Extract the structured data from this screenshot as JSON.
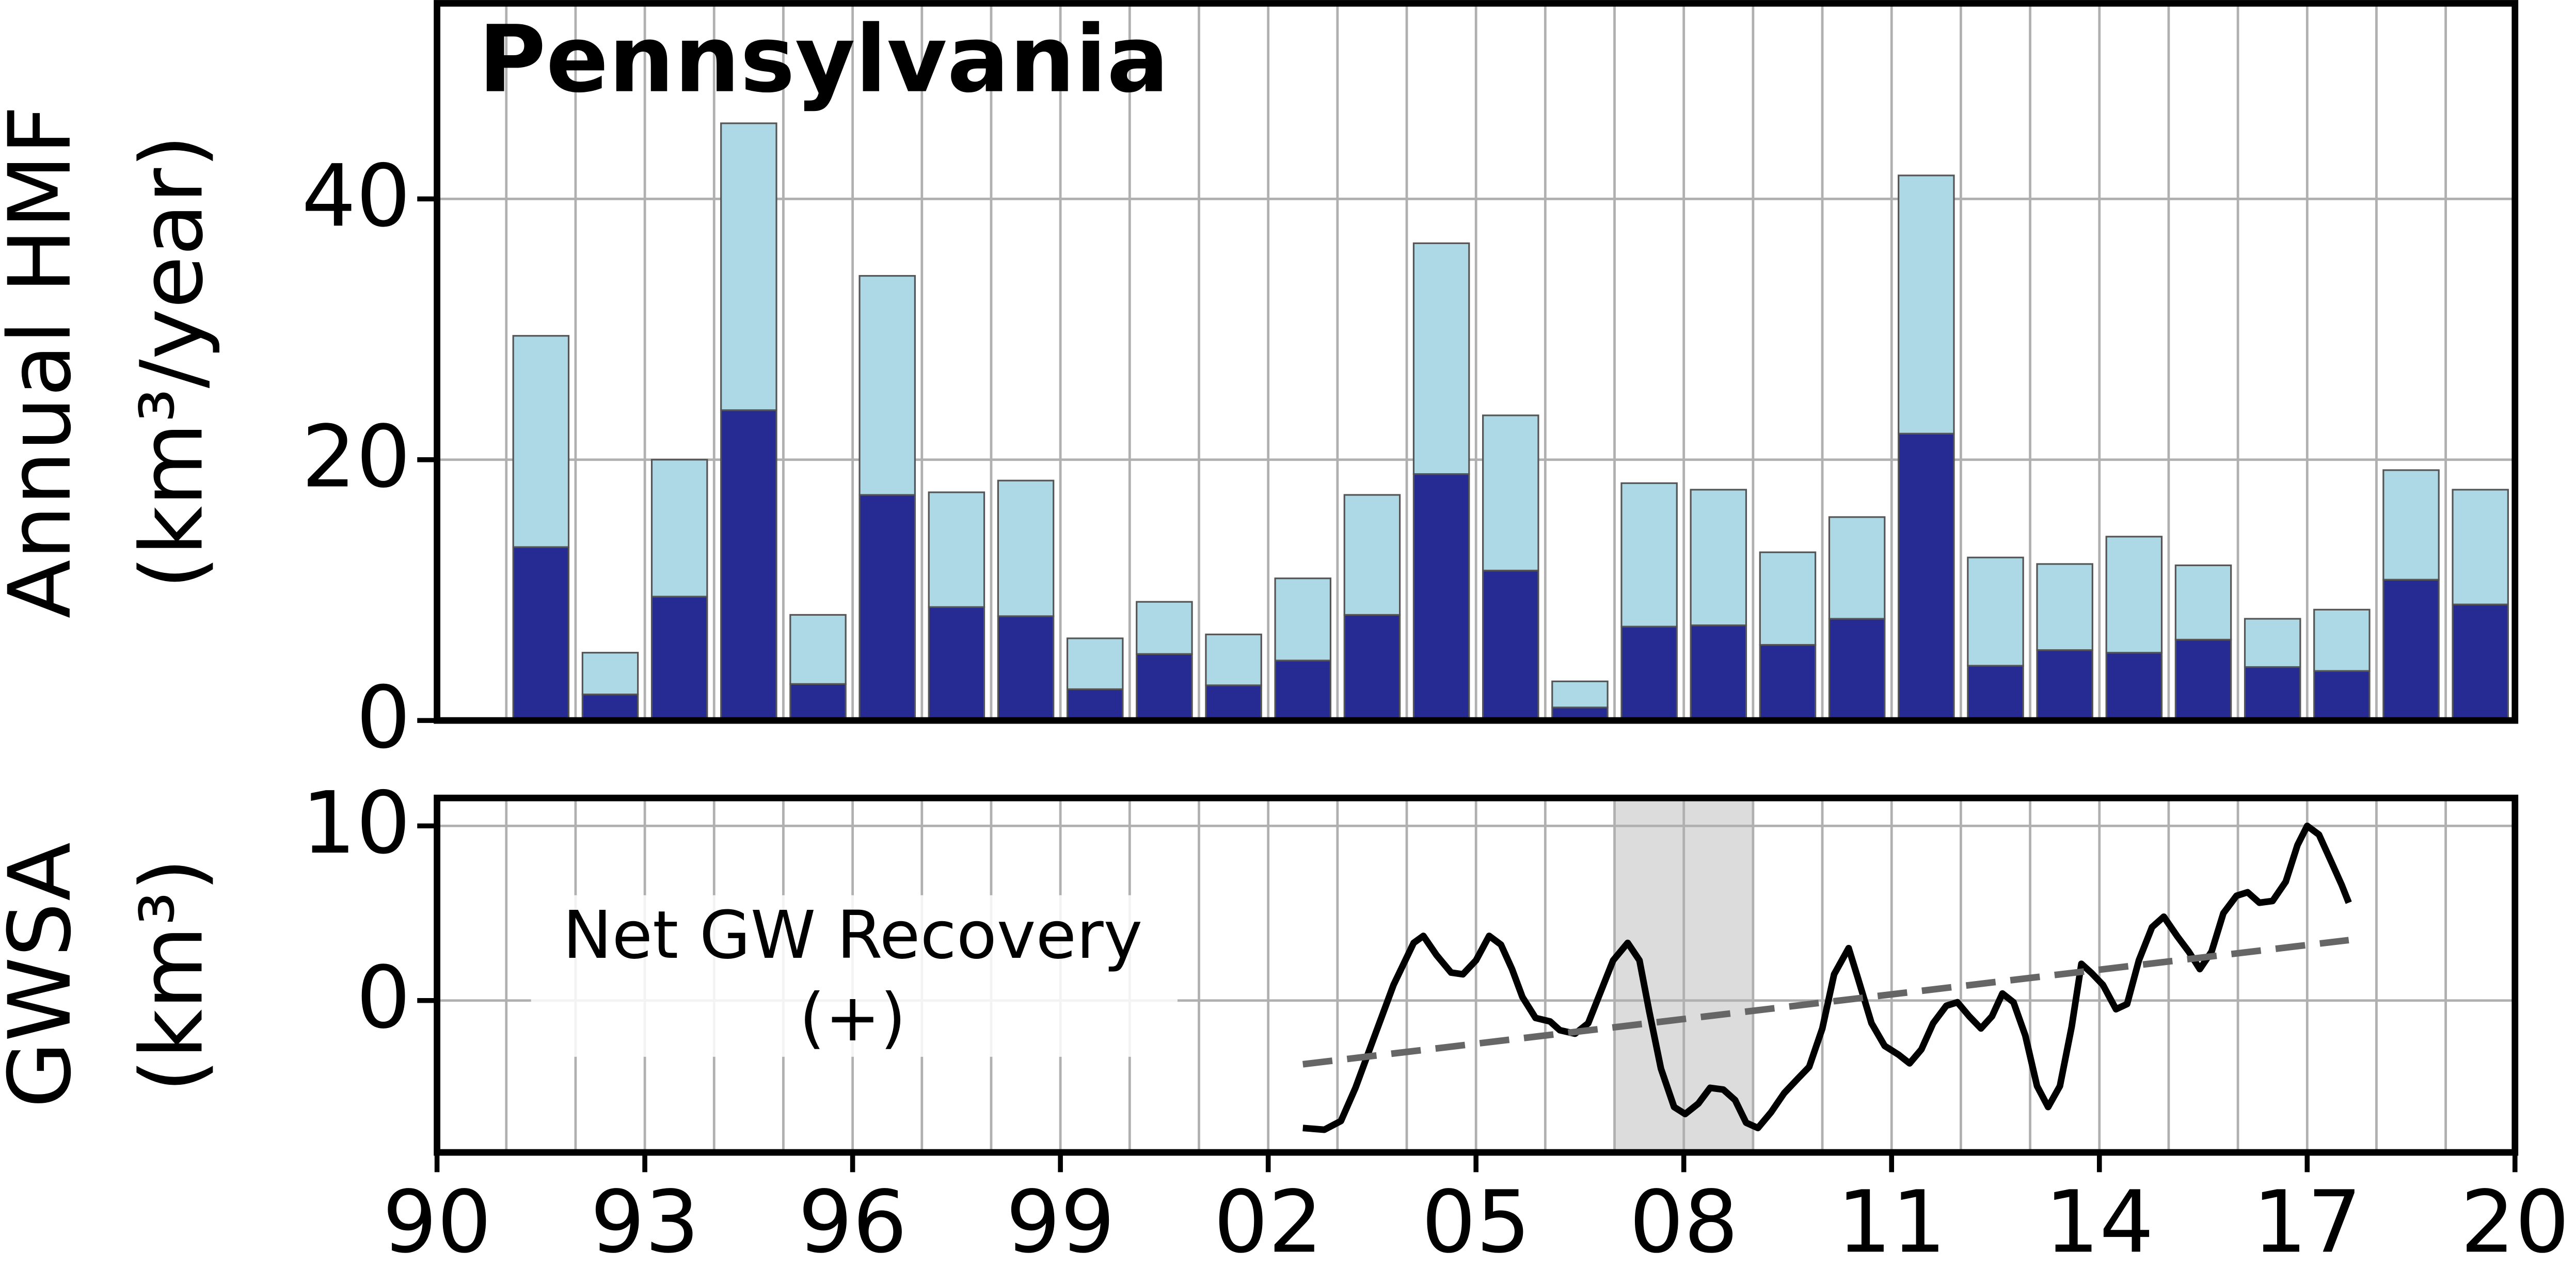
{
  "chart_data": [
    {
      "type": "stacked_bar",
      "title": "Pennsylvania",
      "ylabel": [
        "Annual HMF",
        "(km³/year)"
      ],
      "x": [
        1991,
        1992,
        1993,
        1994,
        1995,
        1996,
        1997,
        1998,
        1999,
        2000,
        2001,
        2002,
        2003,
        2004,
        2005,
        2006,
        2007,
        2008,
        2009,
        2010,
        2011,
        2012,
        2013,
        2014,
        2015,
        2016,
        2017,
        2018,
        2019
      ],
      "series": [
        {
          "color": "#252b93",
          "values": [
            13.3,
            2.0,
            9.5,
            23.8,
            2.8,
            17.3,
            8.7,
            8.0,
            2.4,
            5.1,
            2.7,
            4.6,
            8.1,
            18.9,
            11.5,
            1.0,
            7.2,
            7.3,
            5.8,
            7.8,
            22.0,
            4.2,
            5.4,
            5.2,
            6.2,
            4.1,
            3.8,
            10.8,
            8.9
          ]
        },
        {
          "color": "#add8e6",
          "values": [
            16.2,
            3.2,
            10.5,
            22.0,
            5.3,
            16.8,
            8.8,
            10.4,
            3.9,
            4.0,
            3.9,
            6.3,
            9.2,
            17.7,
            11.9,
            2.0,
            11.0,
            10.4,
            7.1,
            7.8,
            19.8,
            8.3,
            6.6,
            8.9,
            5.7,
            3.7,
            4.7,
            8.4,
            8.8
          ]
        }
      ],
      "xlim": [
        1990,
        2020
      ],
      "ylim": [
        0,
        55
      ],
      "yticks": [
        0,
        20,
        40
      ],
      "xgrid": [
        1990,
        1991,
        1992,
        1993,
        1994,
        1995,
        1996,
        1997,
        1998,
        1999,
        2000,
        2001,
        2002,
        2003,
        2004,
        2005,
        2006,
        2007,
        2008,
        2009,
        2010,
        2011,
        2012,
        2013,
        2014,
        2015,
        2016,
        2017,
        2018,
        2019,
        2020
      ],
      "grid": true
    },
    {
      "type": "line",
      "ylabel": [
        "GWSA",
        "(km³)"
      ],
      "annotation": [
        "Net GW Recovery",
        "(+)"
      ],
      "shaded_span": [
        2007,
        2009
      ],
      "series": [
        {
          "color": "#000000",
          "style": "solid",
          "x": [
            2002.5,
            2002.81,
            2003.05,
            2003.26,
            2003.52,
            2003.81,
            2004.1,
            2004.24,
            2004.43,
            2004.64,
            2004.81,
            2005.0,
            2005.19,
            2005.36,
            2005.52,
            2005.67,
            2005.86,
            2006.07,
            2006.21,
            2006.43,
            2006.62,
            2006.79,
            2006.98,
            2007.19,
            2007.36,
            2007.5,
            2007.67,
            2007.86,
            2008.02,
            2008.21,
            2008.38,
            2008.57,
            2008.74,
            2008.9,
            2009.07,
            2009.26,
            2009.45,
            2009.64,
            2009.81,
            2010.0,
            2010.17,
            2010.38,
            2010.52,
            2010.71,
            2010.9,
            2011.1,
            2011.26,
            2011.43,
            2011.6,
            2011.79,
            2011.95,
            2012.12,
            2012.29,
            2012.45,
            2012.6,
            2012.76,
            2012.93,
            2013.1,
            2013.26,
            2013.43,
            2013.6,
            2013.74,
            2013.88,
            2014.05,
            2014.24,
            2014.4,
            2014.57,
            2014.76,
            2014.93,
            2015.12,
            2015.29,
            2015.45,
            2015.62,
            2015.79,
            2015.98,
            2016.14,
            2016.31,
            2016.5,
            2016.69,
            2016.86,
            2017.0,
            2017.17,
            2017.33,
            2017.5,
            2017.6
          ],
          "values": [
            -7.3,
            -7.4,
            -6.9,
            -5.0,
            -2.2,
            0.9,
            3.3,
            3.7,
            2.6,
            1.6,
            1.5,
            2.3,
            3.7,
            3.2,
            1.8,
            0.2,
            -1.0,
            -1.2,
            -1.7,
            -1.9,
            -1.3,
            0.4,
            2.3,
            3.3,
            2.3,
            -0.6,
            -3.9,
            -6.1,
            -6.5,
            -5.9,
            -5.0,
            -5.1,
            -5.7,
            -7.0,
            -7.3,
            -6.4,
            -5.3,
            -4.5,
            -3.8,
            -1.6,
            1.5,
            3.0,
            1.2,
            -1.3,
            -2.6,
            -3.1,
            -3.6,
            -2.8,
            -1.3,
            -0.3,
            -0.1,
            -0.9,
            -1.6,
            -0.9,
            0.4,
            -0.1,
            -2.0,
            -4.9,
            -6.1,
            -4.9,
            -1.5,
            2.1,
            1.6,
            0.9,
            -0.5,
            -0.2,
            2.3,
            4.2,
            4.8,
            3.7,
            2.8,
            1.8,
            2.8,
            5.0,
            6.0,
            6.2,
            5.6,
            5.7,
            6.8,
            8.9,
            10.0,
            9.5,
            8.1,
            6.6,
            5.6
          ]
        },
        {
          "color": "#666666",
          "style": "dashed",
          "x": [
            2002.5,
            2017.6
          ],
          "values": [
            -3.65,
            3.46
          ]
        }
      ],
      "xlim": [
        1990,
        2020
      ],
      "ylim": [
        -8.7,
        11.6
      ],
      "yticks": [
        0,
        10
      ],
      "xticks": [
        {
          "value": 1990,
          "label": "90"
        },
        {
          "value": 1993,
          "label": "93"
        },
        {
          "value": 1996,
          "label": "96"
        },
        {
          "value": 1999,
          "label": "99"
        },
        {
          "value": 2002,
          "label": "02"
        },
        {
          "value": 2005,
          "label": "05"
        },
        {
          "value": 2008,
          "label": "08"
        },
        {
          "value": 2011,
          "label": "11"
        },
        {
          "value": 2014,
          "label": "14"
        },
        {
          "value": 2017,
          "label": "17"
        },
        {
          "value": 2020,
          "label": "20"
        }
      ],
      "xgrid": [
        1990,
        1991,
        1992,
        1993,
        1994,
        1995,
        1996,
        1997,
        1998,
        1999,
        2000,
        2001,
        2002,
        2003,
        2004,
        2005,
        2006,
        2007,
        2008,
        2009,
        2010,
        2011,
        2012,
        2013,
        2014,
        2015,
        2016,
        2017,
        2018,
        2019,
        2020
      ],
      "grid": true
    }
  ]
}
